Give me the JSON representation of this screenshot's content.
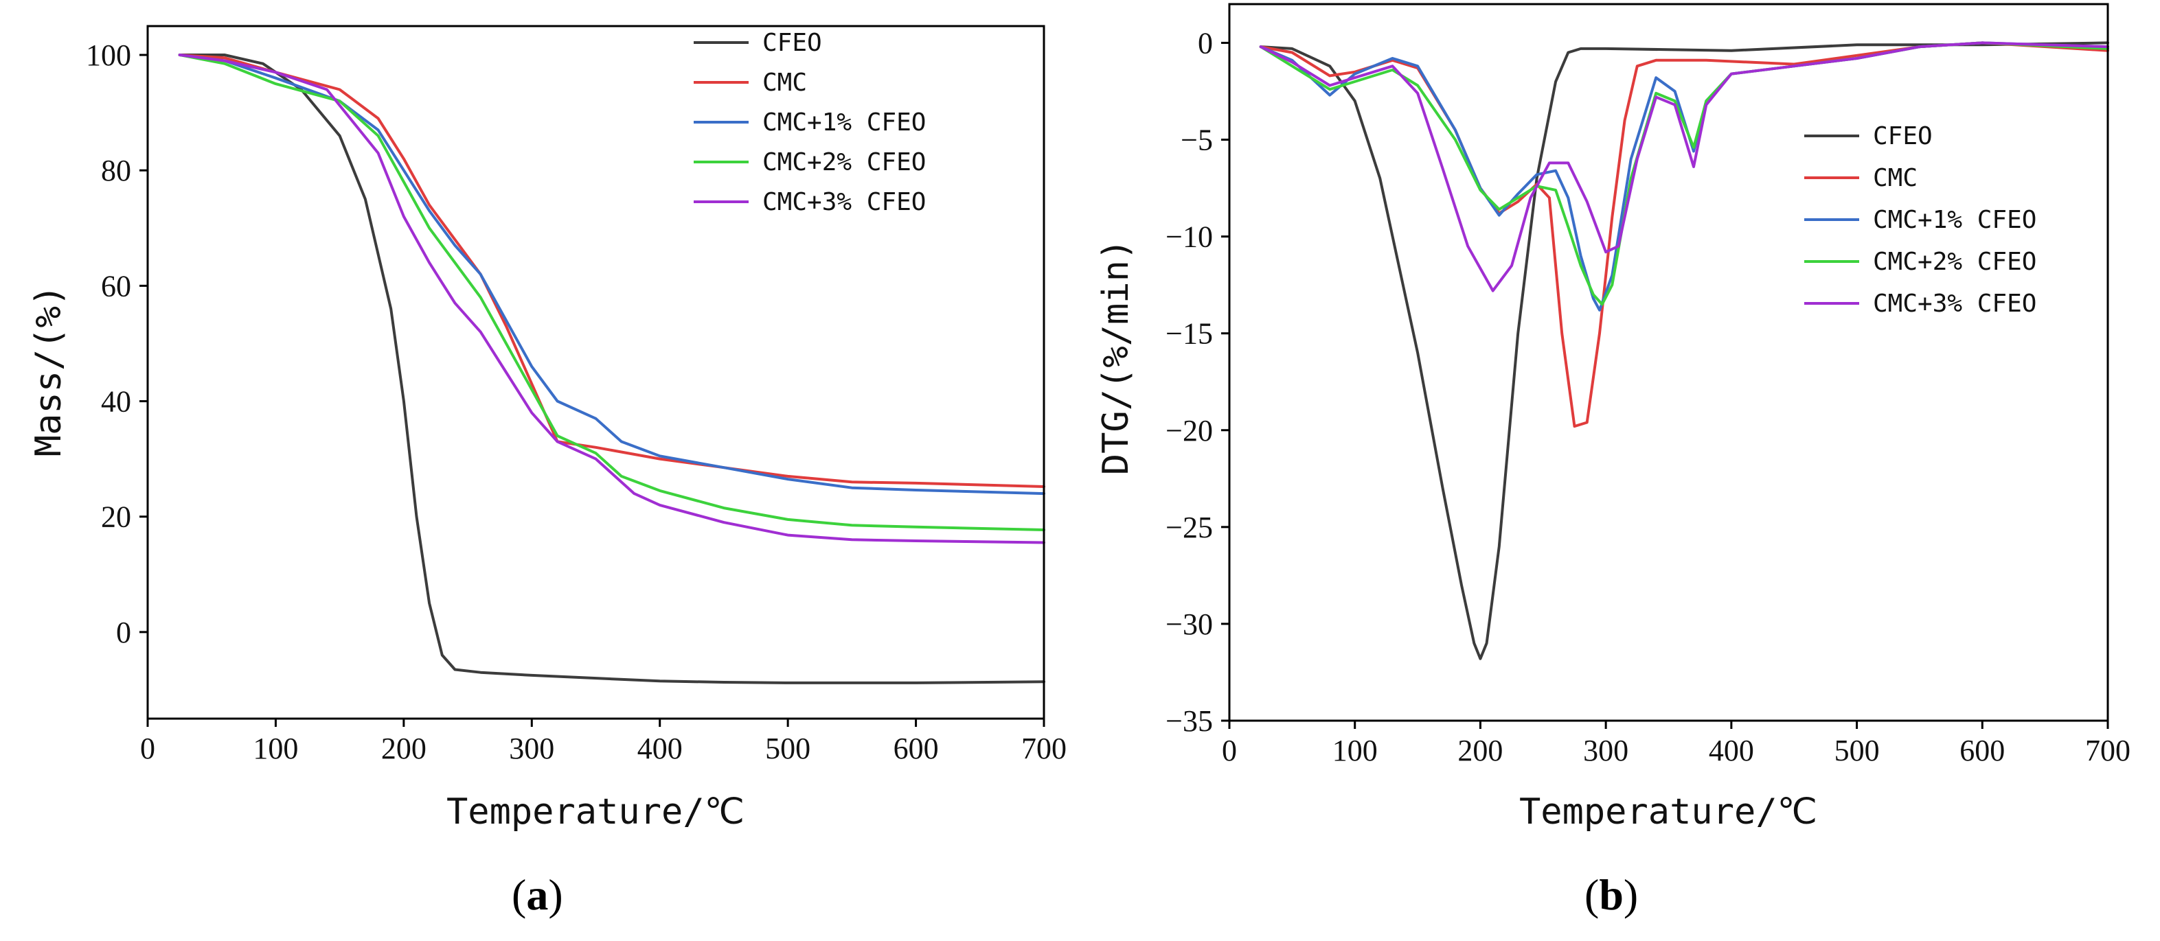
{
  "chart_data": [
    {
      "type": "line",
      "panel_label_letter": "a",
      "xlabel": "Temperature/℃",
      "ylabel": "Mass/(%)",
      "xlim": [
        0,
        700
      ],
      "ylim": [
        -15,
        105
      ],
      "xticks": [
        0,
        100,
        200,
        300,
        400,
        500,
        600,
        700
      ],
      "yticks": [
        0,
        20,
        40,
        60,
        80,
        100
      ],
      "legend_position": "top-right",
      "series": [
        {
          "name": "CFEO",
          "color": "#3c3c3c",
          "x": [
            25,
            60,
            90,
            120,
            150,
            170,
            190,
            200,
            210,
            220,
            230,
            240,
            260,
            300,
            400,
            450,
            500,
            600,
            700
          ],
          "y": [
            100,
            100,
            98.5,
            94,
            86,
            75,
            56,
            40,
            20,
            5,
            -4,
            -6.5,
            -7,
            -7.5,
            -8.5,
            -8.7,
            -8.8,
            -8.8,
            -8.6
          ]
        },
        {
          "name": "CMC",
          "color": "#e03c3c",
          "x": [
            25,
            60,
            100,
            150,
            180,
            200,
            220,
            240,
            260,
            280,
            300,
            320,
            350,
            400,
            450,
            500,
            550,
            600,
            700
          ],
          "y": [
            100,
            99.5,
            97,
            94,
            89,
            82,
            74,
            68,
            62,
            53,
            43,
            33,
            32,
            30,
            28.5,
            27,
            26,
            25.8,
            25.2
          ]
        },
        {
          "name": "CMC+1% CFEO",
          "color": "#3a6ec8",
          "x": [
            25,
            60,
            100,
            150,
            180,
            200,
            220,
            240,
            260,
            280,
            300,
            320,
            350,
            370,
            400,
            450,
            500,
            550,
            600,
            700
          ],
          "y": [
            100,
            99,
            96,
            92,
            87,
            80,
            73,
            67,
            62,
            54,
            46,
            40,
            37,
            33,
            30.5,
            28.5,
            26.5,
            25,
            24.6,
            24
          ]
        },
        {
          "name": "CMC+2% CFEO",
          "color": "#3cd23c",
          "x": [
            25,
            60,
            100,
            150,
            180,
            200,
            220,
            240,
            260,
            280,
            300,
            320,
            350,
            370,
            400,
            450,
            500,
            550,
            600,
            700
          ],
          "y": [
            100,
            98.5,
            95,
            92,
            86,
            78,
            70,
            64,
            58,
            50,
            42,
            34,
            31,
            27,
            24.5,
            21.5,
            19.5,
            18.5,
            18.2,
            17.7
          ]
        },
        {
          "name": "CMC+3% CFEO",
          "color": "#a02ed2",
          "x": [
            25,
            60,
            100,
            140,
            180,
            200,
            220,
            240,
            260,
            280,
            300,
            320,
            350,
            380,
            400,
            450,
            500,
            550,
            600,
            700
          ],
          "y": [
            100,
            99,
            97,
            94,
            83,
            72,
            64,
            57,
            52,
            45,
            38,
            33,
            30,
            24,
            22,
            19,
            16.8,
            16,
            15.8,
            15.5
          ]
        }
      ]
    },
    {
      "type": "line",
      "panel_label_letter": "b",
      "xlabel": "Temperature/℃",
      "ylabel": "DTG/(%/min)",
      "xlim": [
        0,
        700
      ],
      "ylim": [
        -35,
        2
      ],
      "xticks": [
        0,
        100,
        200,
        300,
        400,
        500,
        600,
        700
      ],
      "yticks": [
        0,
        -5,
        -10,
        -15,
        -20,
        -25,
        -30,
        -35
      ],
      "legend_position": "center-right",
      "series": [
        {
          "name": "CFEO",
          "color": "#3c3c3c",
          "x": [
            25,
            50,
            80,
            100,
            120,
            150,
            170,
            185,
            195,
            200,
            205,
            215,
            230,
            245,
            260,
            270,
            280,
            300,
            400,
            500,
            600,
            700
          ],
          "y": [
            -0.2,
            -0.3,
            -1.2,
            -3,
            -7,
            -16,
            -23,
            -28,
            -31,
            -31.8,
            -31,
            -26,
            -15,
            -7,
            -2,
            -0.5,
            -0.3,
            -0.3,
            -0.4,
            -0.1,
            -0.1,
            0
          ]
        },
        {
          "name": "CMC",
          "color": "#e03c3c",
          "x": [
            25,
            50,
            80,
            100,
            130,
            150,
            180,
            200,
            215,
            230,
            245,
            255,
            265,
            275,
            285,
            295,
            305,
            315,
            325,
            340,
            380,
            450,
            550,
            600,
            700
          ],
          "y": [
            -0.2,
            -0.5,
            -1.7,
            -1.5,
            -0.9,
            -1.3,
            -4.5,
            -7.5,
            -8.8,
            -8.2,
            -7.3,
            -8,
            -15,
            -19.8,
            -19.6,
            -15,
            -9,
            -4,
            -1.2,
            -0.9,
            -0.9,
            -1.1,
            -0.2,
            0,
            -0.4
          ]
        },
        {
          "name": "CMC+1% CFEO",
          "color": "#3a6ec8",
          "x": [
            25,
            50,
            80,
            100,
            130,
            150,
            180,
            200,
            215,
            230,
            245,
            260,
            270,
            280,
            290,
            295,
            305,
            320,
            340,
            355,
            370,
            380,
            400,
            450,
            500,
            550,
            600,
            700
          ],
          "y": [
            -0.2,
            -0.9,
            -2.7,
            -1.6,
            -0.8,
            -1.2,
            -4.5,
            -7.5,
            -8.9,
            -7.8,
            -6.8,
            -6.6,
            -8,
            -11,
            -13.2,
            -13.8,
            -12,
            -6,
            -1.8,
            -2.5,
            -5.6,
            -3,
            -1.6,
            -1.2,
            -0.8,
            -0.2,
            0,
            -0.2
          ]
        },
        {
          "name": "CMC+2% CFEO",
          "color": "#3cd23c",
          "x": [
            25,
            50,
            80,
            100,
            130,
            150,
            180,
            200,
            215,
            230,
            245,
            260,
            270,
            280,
            290,
            297,
            305,
            320,
            340,
            355,
            370,
            380,
            400,
            450,
            500,
            550,
            600,
            700
          ],
          "y": [
            -0.2,
            -1.2,
            -2.4,
            -2,
            -1.4,
            -2.2,
            -5,
            -7.6,
            -8.6,
            -8,
            -7.4,
            -7.6,
            -9.5,
            -11.5,
            -13,
            -13.5,
            -12.5,
            -7,
            -2.6,
            -3,
            -5.4,
            -3,
            -1.6,
            -1.2,
            -0.8,
            -0.2,
            0,
            -0.3
          ]
        },
        {
          "name": "CMC+3% CFEO",
          "color": "#a02ed2",
          "x": [
            25,
            50,
            80,
            100,
            130,
            150,
            170,
            190,
            210,
            225,
            240,
            255,
            270,
            285,
            300,
            310,
            325,
            340,
            355,
            370,
            380,
            400,
            450,
            500,
            550,
            600,
            700
          ],
          "y": [
            -0.2,
            -1,
            -2.2,
            -1.8,
            -1.2,
            -2.6,
            -6.5,
            -10.5,
            -12.8,
            -11.5,
            -8,
            -6.2,
            -6.2,
            -8.2,
            -10.8,
            -10.5,
            -6,
            -2.8,
            -3.2,
            -6.4,
            -3.2,
            -1.6,
            -1.2,
            -0.8,
            -0.2,
            0,
            -0.2
          ]
        }
      ]
    }
  ]
}
